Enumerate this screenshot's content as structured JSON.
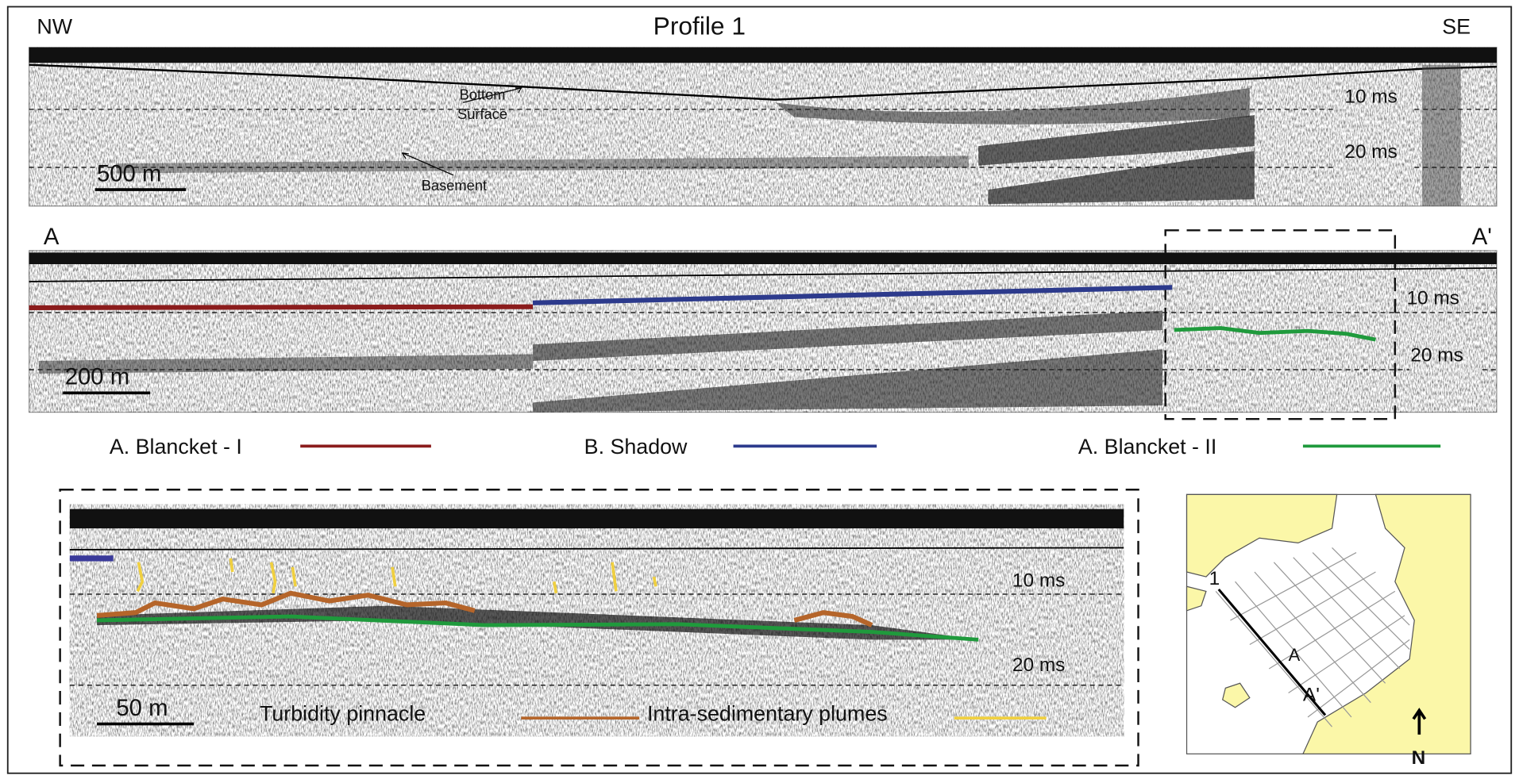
{
  "profile": {
    "title": "Profile 1",
    "left_label": "NW",
    "right_label": "SE",
    "bottom_surface": [
      "Bottom",
      "Surface"
    ],
    "basement": "Basement",
    "scale": "500 m",
    "ticks": [
      "10 ms",
      "20 ms"
    ]
  },
  "section": {
    "left_label": "A",
    "right_label": "A'",
    "scale": "200 m",
    "ticks": [
      "10 ms",
      "20 ms"
    ]
  },
  "legend": [
    {
      "label": "A. Blancket - I",
      "color": "#8b1c1c"
    },
    {
      "label": "B. Shadow",
      "color": "#2c3a8c"
    },
    {
      "label": "A. Blancket - II",
      "color": "#1f9a3c"
    }
  ],
  "detail": {
    "scale": "50 m",
    "ticks": [
      "10 ms",
      "20 ms"
    ],
    "legend": [
      {
        "label": "Turbidity pinnacle",
        "color": "#b5652a"
      },
      {
        "label": "Intra-sedimentary plumes",
        "color": "#f0d040"
      }
    ]
  },
  "map": {
    "line_label": "1",
    "point_a": "A",
    "point_a_prime": "A'",
    "north": "N"
  }
}
